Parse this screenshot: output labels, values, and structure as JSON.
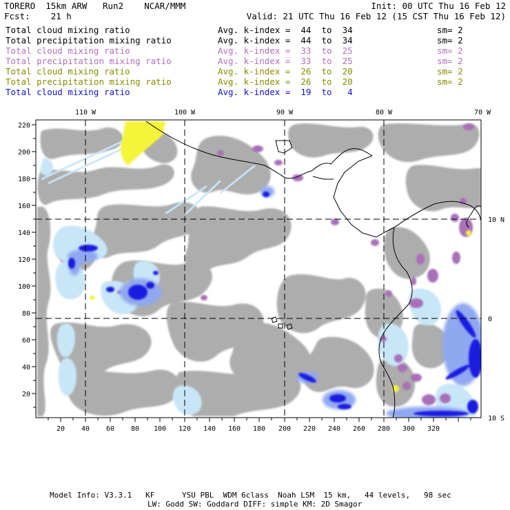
{
  "header": {
    "line1_left": "TORERO  15km ARW   Run2    NCAR/MMM",
    "line1_right": "Init: 00 UTC Thu 16 Feb 12",
    "line2_left": "Fcst:    21 h",
    "line2_right": "Valid: 21 UTC Thu 16 Feb 12 (15 CST Thu 16 Feb 12)"
  },
  "fields": [
    {
      "name": "Total cloud mixing ratio",
      "index": "Avg. k-index =  44  to  34",
      "sm": "sm= 2",
      "color": "#000000"
    },
    {
      "name": "Total precipitation mixing ratio",
      "index": "Avg. k-index =  44  to  34",
      "sm": "sm= 2",
      "color": "#000000"
    },
    {
      "name": "Total cloud mixing ratio",
      "index": "Avg. k-index =  33  to  25",
      "sm": "sm= 2",
      "color": "#b070c0"
    },
    {
      "name": "Total precipitation mixing ratio",
      "index": "Avg. k-index =  33  to  25",
      "sm": "sm= 2",
      "color": "#b070c0"
    },
    {
      "name": "Total cloud mixing ratio",
      "index": "Avg. k-index =  26  to  20",
      "sm": "sm= 2",
      "color": "#8a8a00"
    },
    {
      "name": "Total precipitation mixing ratio",
      "index": "Avg. k-index =  26  to  20",
      "sm": "sm= 2",
      "color": "#8a8a00"
    },
    {
      "name": "Total cloud mixing ratio",
      "index": "Avg. k-index =  19  to   4",
      "sm": "",
      "color": "#1010d0"
    }
  ],
  "map": {
    "lon_labels": [
      "110 W",
      "100 W",
      "90 W",
      "80 W",
      "70 W"
    ],
    "lat_labels": [
      "10 N",
      "0",
      "10 S"
    ],
    "x_ticks": [
      "20",
      "40",
      "60",
      "80",
      "100",
      "120",
      "140",
      "160",
      "180",
      "200",
      "220",
      "240",
      "260",
      "280",
      "300",
      "320"
    ],
    "y_ticks": [
      "220",
      "200",
      "180",
      "160",
      "140",
      "120",
      "100",
      "80",
      "60",
      "40",
      "20"
    ],
    "colors": {
      "high_cloud": "#a9a9a9",
      "mid_cloud": "#a870b8",
      "low_cloud_yellow": "#f4f43a",
      "deep_cloud_blue": "#1a1ae0",
      "light_blue": "#c8e6f8"
    }
  },
  "footer": {
    "line1": "Model Info: V3.3.1   KF      YSU PBL  WDM 6class  Noah LSM  15 km,   44 levels,   98 sec",
    "line2": "LW: Godd SW: Goddard DIFF: simple KM: 2D Smagor"
  }
}
